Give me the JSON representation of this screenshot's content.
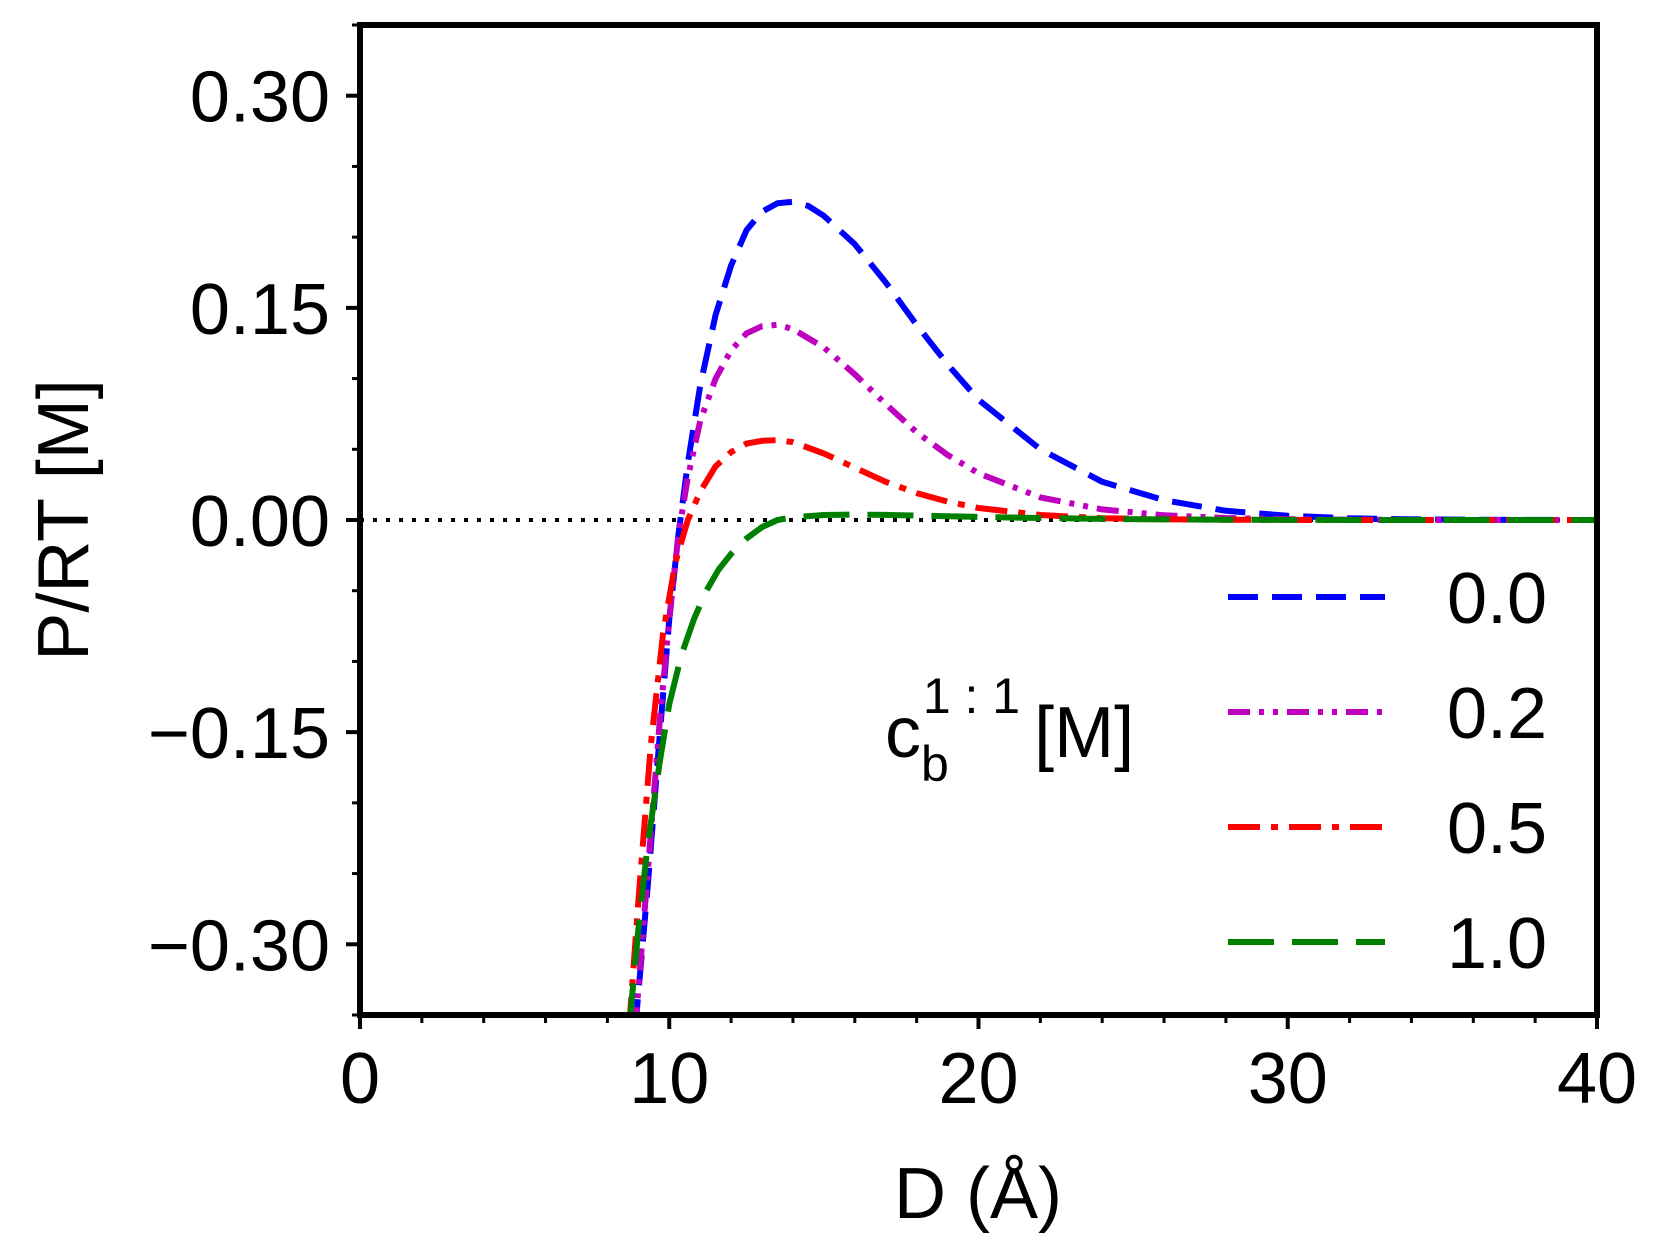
{
  "chart_data": {
    "type": "line",
    "title": "",
    "xlabel": "D (Å)",
    "ylabel": "P/RT [M]",
    "xlim": [
      0,
      40
    ],
    "ylim": [
      -0.35,
      0.35
    ],
    "x_ticks": [
      0,
      10,
      20,
      30,
      40
    ],
    "x_tick_labels": [
      "0",
      "10",
      "20",
      "30",
      "40"
    ],
    "y_ticks": [
      -0.3,
      -0.15,
      0.0,
      0.15,
      0.3
    ],
    "y_tick_labels": [
      "−0.30",
      "−0.15",
      "0.00",
      "0.15",
      "0.30"
    ],
    "grid": false,
    "legend": {
      "placement": "lower-right",
      "title_main": "c",
      "title_sub": "b",
      "title_sup": "1 : 1",
      "title_unit": "[M]"
    },
    "reference_line": {
      "y": 0.0,
      "style": "dotted",
      "color": "#000000"
    },
    "series": [
      {
        "name": "0.0",
        "color": "#0000ff",
        "dash": "dashed",
        "x": [
          8.9,
          9.3,
          9.7,
          10.0,
          10.3,
          10.6,
          11.0,
          11.5,
          12.0,
          12.5,
          13.0,
          13.5,
          14.0,
          14.5,
          15.0,
          16.0,
          17.0,
          18.0,
          19.0,
          20.0,
          22.0,
          24.0,
          26.0,
          28.0,
          30.0,
          32.0,
          34.0,
          36.0,
          38.0,
          40.0
        ],
        "y": [
          -0.36,
          -0.26,
          -0.15,
          -0.07,
          -0.01,
          0.04,
          0.095,
          0.145,
          0.18,
          0.205,
          0.218,
          0.224,
          0.225,
          0.222,
          0.215,
          0.195,
          0.168,
          0.138,
          0.11,
          0.085,
          0.05,
          0.027,
          0.014,
          0.0065,
          0.003,
          0.0012,
          0.0005,
          0.0002,
          0.0001,
          0.0
        ]
      },
      {
        "name": "0.2",
        "color": "#bf00bf",
        "dash": "dash-dot-dot",
        "x": [
          8.9,
          9.3,
          9.7,
          10.0,
          10.3,
          10.6,
          11.0,
          11.5,
          12.0,
          12.5,
          13.0,
          13.5,
          14.0,
          15.0,
          16.0,
          17.0,
          18.0,
          19.0,
          20.0,
          22.0,
          24.0,
          26.0,
          28.0,
          30.0,
          32.0,
          34.0,
          36.0,
          38.0,
          40.0
        ],
        "y": [
          -0.36,
          -0.25,
          -0.14,
          -0.07,
          -0.01,
          0.03,
          0.07,
          0.1,
          0.12,
          0.132,
          0.137,
          0.138,
          0.135,
          0.122,
          0.103,
          0.082,
          0.062,
          0.046,
          0.033,
          0.016,
          0.0075,
          0.0033,
          0.0014,
          0.0006,
          0.0002,
          0.0001,
          0.0,
          0.0,
          0.0
        ]
      },
      {
        "name": "0.5",
        "color": "#ff0000",
        "dash": "dash-dot",
        "x": [
          8.7,
          9.0,
          9.4,
          9.8,
          10.2,
          10.6,
          11.0,
          11.5,
          12.0,
          12.5,
          13.0,
          13.5,
          14.0,
          15.0,
          16.0,
          17.0,
          18.0,
          19.0,
          20.0,
          22.0,
          24.0,
          26.0,
          28.0,
          30.0,
          32.0,
          34.0,
          36.0,
          38.0,
          40.0
        ],
        "y": [
          -0.36,
          -0.27,
          -0.16,
          -0.08,
          -0.03,
          0.0,
          0.02,
          0.038,
          0.048,
          0.054,
          0.056,
          0.0565,
          0.055,
          0.047,
          0.037,
          0.027,
          0.019,
          0.013,
          0.0085,
          0.0035,
          0.0013,
          0.0005,
          0.0002,
          0.0001,
          0.0,
          0.0,
          0.0,
          0.0,
          0.0
        ]
      },
      {
        "name": "1.0",
        "color": "#008000",
        "dash": "long-dash",
        "x": [
          8.7,
          9.0,
          9.3,
          9.7,
          10.0,
          10.4,
          10.8,
          11.2,
          11.6,
          12.0,
          12.5,
          13.0,
          13.5,
          14.0,
          15.0,
          16.0,
          17.0,
          18.0,
          19.0,
          20.0,
          22.0,
          24.0,
          26.0,
          28.0,
          30.0,
          34.0,
          40.0
        ],
        "y": [
          -0.36,
          -0.29,
          -0.23,
          -0.17,
          -0.13,
          -0.095,
          -0.07,
          -0.05,
          -0.035,
          -0.024,
          -0.013,
          -0.005,
          0.0,
          0.002,
          0.0035,
          0.0038,
          0.0036,
          0.0032,
          0.0027,
          0.0022,
          0.0014,
          0.0008,
          0.0004,
          0.0002,
          0.0001,
          0.0,
          0.0
        ]
      }
    ]
  }
}
